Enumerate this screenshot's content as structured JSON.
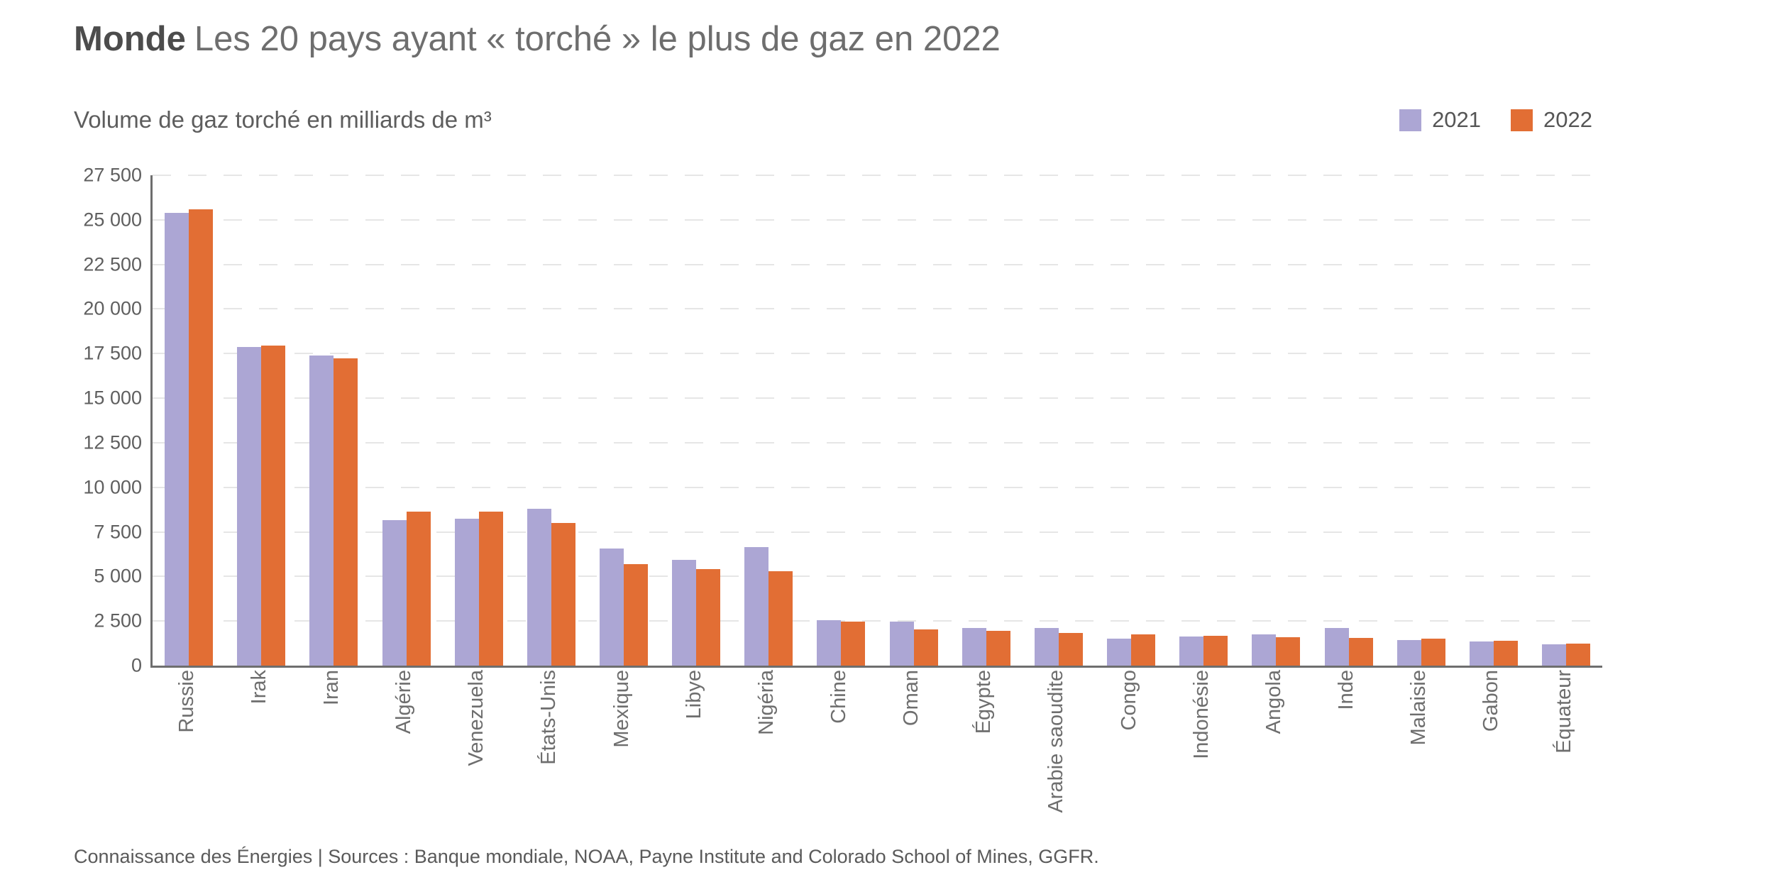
{
  "header": {
    "title_bold": "Monde",
    "title_rest": "Les 20 pays ayant « torché » le plus de gaz en 2022",
    "subtitle": "Volume de gaz torché en milliards de m³"
  },
  "footer": {
    "text": "Connaissance des Énergies | Sources : Banque mondiale, NOAA, Payne Institute and Colorado School of Mines, GGFR."
  },
  "chart_data": {
    "type": "bar",
    "title": "Monde — Les 20 pays ayant « torché » le plus de gaz en 2022",
    "ylabel": "Volume de gaz torché en milliards de m³",
    "xlabel": "",
    "grid": "horizontal-dashed",
    "legend_position": "top-right",
    "ylim": [
      0,
      27500
    ],
    "categories": [
      "Russie",
      "Irak",
      "Iran",
      "Algérie",
      "Venezuela",
      "États-Unis",
      "Mexique",
      "Libye",
      "Nigéria",
      "Chine",
      "Oman",
      "Égypte",
      "Arabie saoudite",
      "Congo",
      "Indonésie",
      "Angola",
      "Inde",
      "Malaisie",
      "Gabon",
      "Équateur"
    ],
    "series": [
      {
        "name": "2021",
        "color": "#aca6d4",
        "values": [
          25400,
          17850,
          17400,
          8150,
          8250,
          8800,
          6550,
          5950,
          6650,
          2550,
          2450,
          2100,
          2100,
          1500,
          1640,
          1750,
          2100,
          1450,
          1350,
          1200
        ]
      },
      {
        "name": "2022",
        "color": "#e26e34",
        "values": [
          25600,
          17950,
          17250,
          8650,
          8650,
          8000,
          5700,
          5400,
          5300,
          2450,
          2050,
          1950,
          1850,
          1750,
          1670,
          1600,
          1550,
          1500,
          1400,
          1250
        ]
      }
    ],
    "yticks": [
      {
        "value": 0,
        "label": "0"
      },
      {
        "value": 2500,
        "label": "2 500"
      },
      {
        "value": 5000,
        "label": "5 000"
      },
      {
        "value": 7500,
        "label": "7 500"
      },
      {
        "value": 10000,
        "label": "10 000"
      },
      {
        "value": 12500,
        "label": "12 500"
      },
      {
        "value": 15000,
        "label": "15 000"
      },
      {
        "value": 17500,
        "label": "17 500"
      },
      {
        "value": 20000,
        "label": "20 000"
      },
      {
        "value": 22500,
        "label": "22 500"
      },
      {
        "value": 25000,
        "label": "25 000"
      },
      {
        "value": 27500,
        "label": "27 500"
      }
    ],
    "axis_color": "#6e6e6e",
    "gridline_color": "#e6e6e6"
  }
}
